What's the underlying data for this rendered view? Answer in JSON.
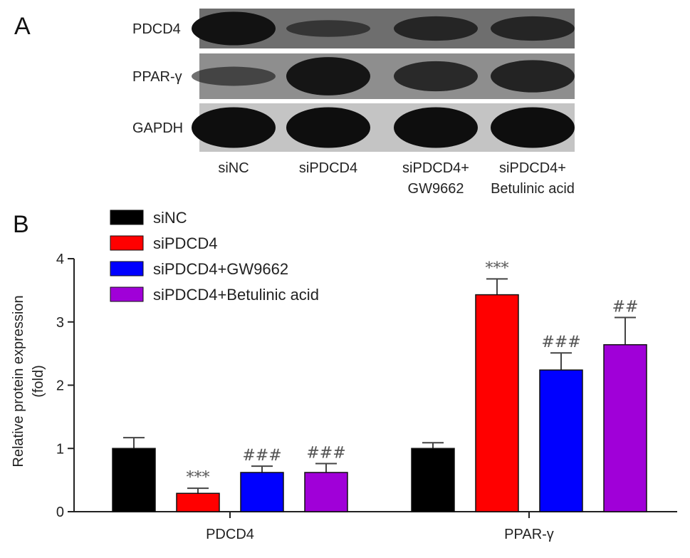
{
  "panel_a": {
    "letter": "A",
    "rows": [
      {
        "label": "PDCD4",
        "bg": "#6e6e6e",
        "band_color": "#121212",
        "intensity": [
          1.0,
          0.3,
          0.62,
          0.62
        ]
      },
      {
        "label": "PPAR-γ",
        "bg": "#8e8e8e",
        "band_color": "#151515",
        "intensity": [
          0.3,
          1.0,
          0.7,
          0.78
        ]
      },
      {
        "label": "GAPDH",
        "bg": "#c4c4c4",
        "band_color": "#0e0e0e",
        "intensity": [
          1.0,
          1.0,
          1.0,
          1.0
        ]
      }
    ],
    "lanes": [
      {
        "line1": "siNC",
        "line2": ""
      },
      {
        "line1": "siPDCD4",
        "line2": ""
      },
      {
        "line1": "siPDCD4+",
        "line2": "GW9662"
      },
      {
        "line1": "siPDCD4+",
        "line2": "Betulinic acid"
      }
    ]
  },
  "chart_data": {
    "type": "bar",
    "panel_letter": "B",
    "categories": [
      "PDCD4",
      "PPAR-γ"
    ],
    "ylabel_line1": "Relative protein expression",
    "ylabel_line2": "(fold)",
    "xlabel": "",
    "ylim": [
      0,
      4
    ],
    "yticks": [
      0,
      1,
      2,
      3,
      4
    ],
    "legend_position": "top-left",
    "series": [
      {
        "name": "siNC",
        "color": "#000000",
        "values": [
          1.0,
          1.0
        ],
        "errors": [
          0.17,
          0.09
        ],
        "sig": [
          "",
          ""
        ]
      },
      {
        "name": "siPDCD4",
        "color": "#ff0000",
        "values": [
          0.29,
          3.43
        ],
        "errors": [
          0.08,
          0.25
        ],
        "sig": [
          "***",
          "***"
        ]
      },
      {
        "name": "siPDCD4+GW9662",
        "color": "#0000ff",
        "values": [
          0.62,
          2.24
        ],
        "errors": [
          0.1,
          0.27
        ],
        "sig": [
          "###",
          "###"
        ]
      },
      {
        "name": "siPDCD4+Betulinic acid",
        "color": "#a000d8",
        "values": [
          0.62,
          2.64
        ],
        "errors": [
          0.14,
          0.43
        ],
        "sig": [
          "###",
          "##"
        ]
      }
    ]
  }
}
